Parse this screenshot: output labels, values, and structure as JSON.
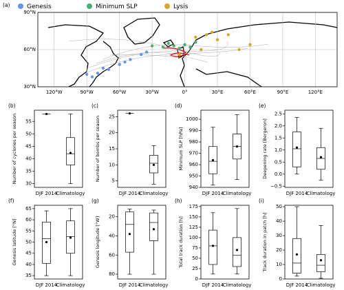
{
  "chart_data": [
    {
      "type": "map",
      "label": "(a)",
      "xlim": [
        -135,
        140
      ],
      "ylim": [
        30,
        90
      ],
      "xticks": [
        {
          "value": -120,
          "label": "120°W"
        },
        {
          "value": -90,
          "label": "90°W"
        },
        {
          "value": -60,
          "label": "60°W"
        },
        {
          "value": -30,
          "label": "30°W"
        },
        {
          "value": 0,
          "label": "0°"
        },
        {
          "value": 30,
          "label": "30°E"
        },
        {
          "value": 60,
          "label": "60°E"
        },
        {
          "value": 90,
          "label": "90°E"
        },
        {
          "value": 120,
          "label": "120°E"
        }
      ],
      "yticks": [
        {
          "value": 30,
          "label": "30°N"
        },
        {
          "value": 60,
          "label": "60°N"
        },
        {
          "value": 90,
          "label": "90°N"
        }
      ],
      "grid": true,
      "series": [
        {
          "name": "Genesis",
          "color": "#6495ed",
          "x": [
            -90,
            -85,
            -80,
            -75,
            -70,
            -60,
            -55,
            -50,
            -40,
            -35
          ],
          "y": [
            40,
            38,
            41,
            45,
            44,
            48,
            50,
            52,
            56,
            58
          ]
        },
        {
          "name": "Minimum SLP",
          "color": "#3cb371",
          "x": [
            -30,
            -20,
            -10,
            -5,
            0,
            5,
            -15,
            10
          ],
          "y": [
            63,
            62,
            63,
            61,
            64,
            62,
            65,
            66
          ]
        },
        {
          "name": "Lysis",
          "color": "#daa520",
          "x": [
            10,
            20,
            30,
            40,
            60,
            50,
            15,
            -5,
            25
          ],
          "y": [
            70,
            72,
            68,
            72,
            64,
            60,
            60,
            56,
            74
          ]
        }
      ]
    },
    {
      "type": "box",
      "label": "(b)",
      "ylabel": "Number of cyclones per season",
      "categories": [
        "DJF 2014",
        "Climatology"
      ],
      "ylim": [
        28.5,
        59.5
      ],
      "yticks": [
        30,
        35,
        40,
        45,
        50,
        55
      ],
      "boxes": [
        {
          "med": 58,
          "mean": 58
        },
        {
          "whislo": 30,
          "q1": 37.5,
          "med": 42,
          "q3": 48.5,
          "whishi": 58,
          "mean": 42.3
        }
      ]
    },
    {
      "type": "box",
      "label": "(c)",
      "ylabel": "Number of bombs per season",
      "categories": [
        "DJF 2014",
        "Climatology"
      ],
      "ylim": [
        3,
        27
      ],
      "yticks": [
        5,
        10,
        15,
        20,
        25
      ],
      "boxes": [
        {
          "med": 26,
          "mean": 26
        },
        {
          "whislo": 4,
          "q1": 7.5,
          "med": 10.5,
          "q3": 13,
          "whishi": 16,
          "mean": 10
        }
      ]
    },
    {
      "type": "box",
      "label": "(d)",
      "ylabel": "Minimum SLP [hPa]",
      "categories": [
        "DJF 2014",
        "Climatology"
      ],
      "ylim": [
        940,
        1008
      ],
      "yticks": [
        940,
        950,
        960,
        970,
        980,
        990,
        1000
      ],
      "boxes": [
        {
          "whislo": 942,
          "q1": 952,
          "med": 963,
          "q3": 976,
          "whishi": 993,
          "mean": 964
        },
        {
          "whislo": 947,
          "q1": 965,
          "med": 976,
          "q3": 987,
          "whishi": 1004,
          "mean": 976
        }
      ]
    },
    {
      "type": "box",
      "label": "(e)",
      "ylabel": "Deepening rate [Bergeron]",
      "categories": [
        "DJF 2014",
        "Climatology"
      ],
      "ylim": [
        -0.55,
        2.65
      ],
      "yticks": [
        {
          "value": -0.5,
          "label": "−0.5"
        },
        {
          "value": 0,
          "label": "0.0"
        },
        {
          "value": 0.5,
          "label": "0.5"
        },
        {
          "value": 1,
          "label": "1.0"
        },
        {
          "value": 1.5,
          "label": "1.5"
        },
        {
          "value": 2,
          "label": "2.0"
        },
        {
          "value": 2.5,
          "label": "2.5"
        }
      ],
      "boxes": [
        {
          "whislo": 0,
          "q1": 0.3,
          "med": 1.05,
          "q3": 1.75,
          "whishi": 2.35,
          "mean": 1.1
        },
        {
          "whislo": -0.25,
          "q1": 0.2,
          "med": 0.65,
          "q3": 1.1,
          "whishi": 1.9,
          "mean": 0.7
        }
      ]
    },
    {
      "type": "box",
      "label": "(f)",
      "ylabel": "Genesis latitude [°N]",
      "categories": [
        "DJF 2014",
        "Climatology"
      ],
      "ylim": [
        33.5,
        66.5
      ],
      "yticks": [
        35,
        40,
        45,
        50,
        55,
        60,
        65
      ],
      "boxes": [
        {
          "whislo": 35,
          "q1": 40.5,
          "med": 51.5,
          "q3": 59,
          "whishi": 64,
          "mean": 50
        },
        {
          "whislo": 35,
          "q1": 45,
          "med": 52.5,
          "q3": 59.5,
          "whishi": 65,
          "mean": 52
        }
      ]
    },
    {
      "type": "box",
      "label": "(g)",
      "ylabel": "Genesis longitude [°W]",
      "categories": [
        "DJF 2014",
        "Climatology"
      ],
      "ylim": [
        8,
        85
      ],
      "yinvert": true,
      "yticks": [
        20,
        40,
        60,
        80
      ],
      "boxes": [
        {
          "whislo": 12,
          "q1": 15,
          "med": 28,
          "q3": 57,
          "whishi": 80,
          "mean": 38
        },
        {
          "whislo": 13,
          "q1": 16,
          "med": 26,
          "q3": 45,
          "whishi": 80,
          "mean": 33
        }
      ]
    },
    {
      "type": "box",
      "label": "(h)",
      "ylabel": "Total track duration [h]",
      "categories": [
        "DJF 2014",
        "Climatology"
      ],
      "ylim": [
        0,
        178
      ],
      "yticks": [
        0,
        25,
        50,
        75,
        100,
        125,
        150,
        175
      ],
      "boxes": [
        {
          "whislo": 12,
          "q1": 35,
          "med": 80,
          "q3": 118,
          "whishi": 160,
          "mean": 80
        },
        {
          "whislo": 12,
          "q1": 30,
          "med": 57,
          "q3": 100,
          "whishi": 170,
          "mean": 70
        }
      ]
    },
    {
      "type": "box",
      "label": "(i)",
      "ylabel": "Track duration in patch [h]",
      "categories": [
        "DJF 2014",
        "Climatology"
      ],
      "ylim": [
        0,
        51
      ],
      "yticks": [
        0,
        10,
        20,
        30,
        40,
        50
      ],
      "boxes": [
        {
          "whislo": 2,
          "q1": 4,
          "med": 11,
          "q3": 28,
          "whishi": 50,
          "mean": 17
        },
        {
          "whislo": 0.5,
          "q1": 5,
          "med": 9.5,
          "q3": 17,
          "whishi": 37,
          "mean": 13
        }
      ]
    }
  ]
}
